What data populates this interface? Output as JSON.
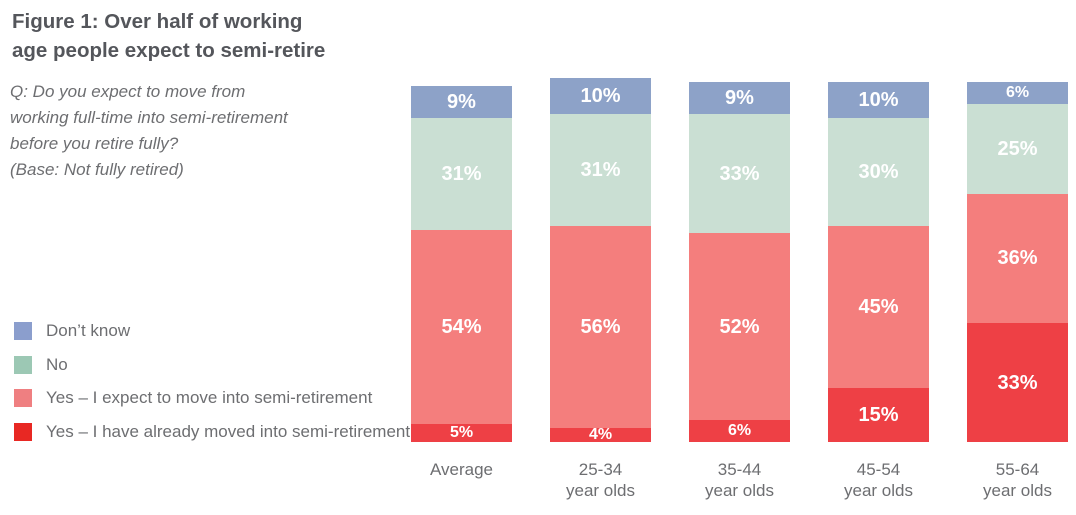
{
  "figure": {
    "title_line1": "Figure 1: Over half of working",
    "title_line2": "age people expect to semi-retire",
    "question_lines": [
      "Q: Do you expect to move from",
      "working full-time into semi-retirement",
      "before you retire fully?",
      "(Base: Not fully retired)"
    ]
  },
  "colors": {
    "title_text": "#54565B",
    "body_text": "#6D6E71",
    "value_label_text": "#FFFFFF"
  },
  "legend": {
    "position": "left",
    "items": [
      {
        "label": "Don’t know",
        "swatch_color": "#8B9ECD"
      },
      {
        "label": "No",
        "swatch_color": "#9CC8B4"
      },
      {
        "label": "Yes – I expect to move into semi-retirement",
        "swatch_color": "#EF7F81"
      },
      {
        "label": "Yes – I have already moved into semi-retirement",
        "swatch_color": "#E82823"
      }
    ]
  },
  "chart_data": {
    "type": "bar",
    "stacked": true,
    "unit": "percent",
    "value_labels": "inside",
    "legend_position": "left",
    "categories": [
      "Average",
      "25-34 year olds",
      "35-44 year olds",
      "45-54 year olds",
      "55-64 year olds"
    ],
    "category_lines": [
      [
        "Average"
      ],
      [
        "25-34",
        "year olds"
      ],
      [
        "35-44",
        "year olds"
      ],
      [
        "45-54",
        "year olds"
      ],
      [
        "55-64",
        "year olds"
      ]
    ],
    "series": [
      {
        "name": "Don’t know",
        "color": "#8DA2C8",
        "values": [
          9,
          10,
          9,
          10,
          6
        ]
      },
      {
        "name": "No",
        "color": "#CADFD3",
        "values": [
          31,
          31,
          33,
          30,
          25
        ]
      },
      {
        "name": "Yes – I expect to move into semi-retirement",
        "color": "#F47E7D",
        "values": [
          54,
          56,
          52,
          45,
          36
        ]
      },
      {
        "name": "Yes – I have already moved into semi-retirement",
        "color": "#EE4045",
        "values": [
          5,
          4,
          6,
          15,
          33
        ]
      }
    ]
  }
}
